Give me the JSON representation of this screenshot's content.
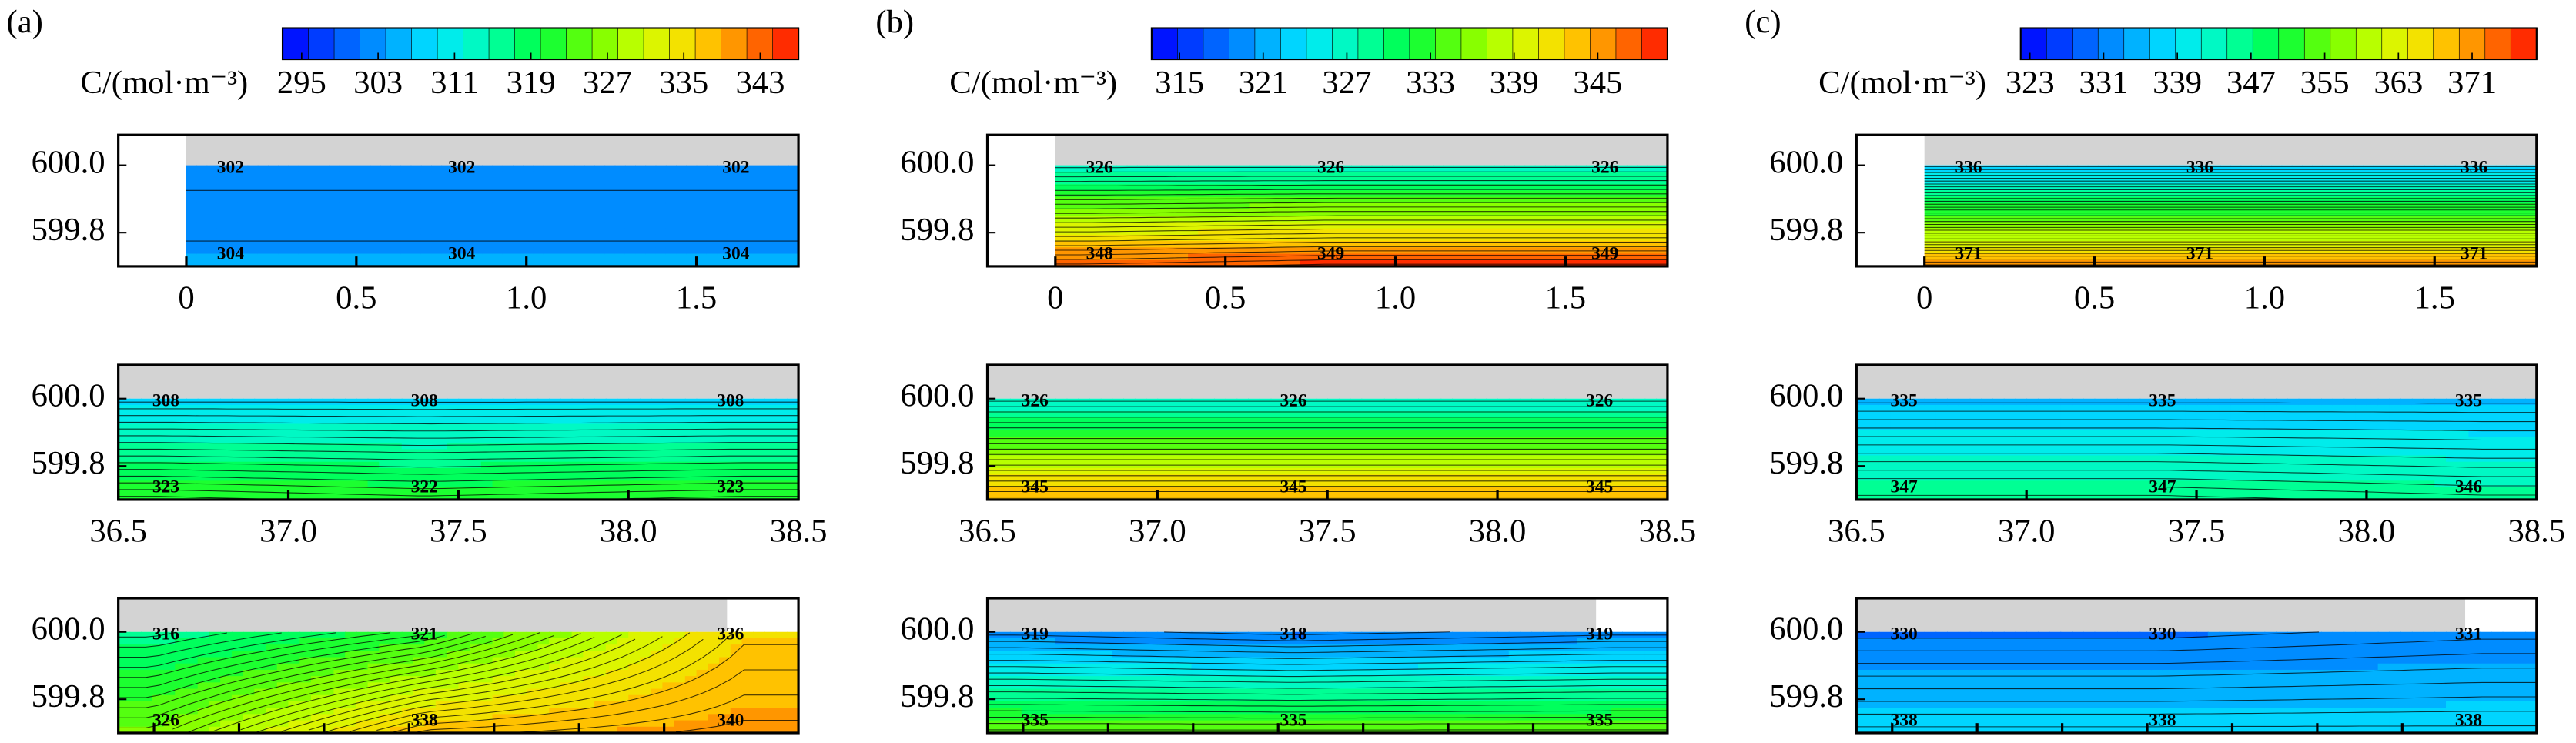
{
  "chart_data": [
    {
      "type": "contour",
      "panel_label": "(a)",
      "colormap": [
        "#0000ff",
        "#0050ff",
        "#00a0ff",
        "#00e6ff",
        "#00ffb0",
        "#00ff40",
        "#70ff00",
        "#d0ff00",
        "#ffd800",
        "#ff8000",
        "#ff1000"
      ],
      "surface_color": "#d3d3d3",
      "colorbar": {
        "label": "C/(mol·m⁻³)",
        "clim": [
          293,
          347
        ],
        "ticks": [
          295,
          303,
          311,
          319,
          327,
          335,
          343
        ]
      },
      "plots": [
        {
          "xlim": [
            -0.2,
            1.8
          ],
          "xticks": [
            0,
            0.5,
            {
              "value": 1,
              "label": "1.0"
            },
            1.5
          ],
          "ylim": [
            599.7,
            600.09
          ],
          "yticks": [
            599.8,
            {
              "value": 600,
              "label": "600.0"
            }
          ],
          "top_labels": [
            302,
            302,
            302
          ],
          "bottom_labels": [
            304,
            304,
            304
          ]
        },
        {
          "xlim": [
            36.5,
            38.5
          ],
          "xticks": [
            36.5,
            {
              "value": 37,
              "label": "37.0"
            },
            37.5,
            {
              "value": 38,
              "label": "38.0"
            },
            38.5
          ],
          "ylim": [
            599.7,
            600.1
          ],
          "yticks": [
            599.8,
            {
              "value": 600,
              "label": "600.0"
            }
          ],
          "top_labels": [
            308,
            308,
            308
          ],
          "bottom_labels": [
            323,
            322,
            323
          ]
        },
        {
          "ylim": [
            599.7,
            600.1
          ],
          "yticks": [
            599.8,
            {
              "value": 600,
              "label": "600.0"
            }
          ],
          "top_labels": [
            316,
            321,
            336
          ],
          "bottom_labels": [
            326,
            338,
            340
          ]
        }
      ]
    },
    {
      "type": "contour",
      "panel_label": "(b)",
      "colormap": [
        "#0000ff",
        "#0050ff",
        "#00a0ff",
        "#00e6ff",
        "#00ffb0",
        "#00ff40",
        "#70ff00",
        "#d0ff00",
        "#ffd800",
        "#ff8000",
        "#ff1000"
      ],
      "surface_color": "#d3d3d3",
      "colorbar": {
        "label": "C/(mol·m⁻³)",
        "clim": [
          313,
          350
        ],
        "ticks": [
          315,
          321,
          327,
          333,
          339,
          345
        ]
      },
      "plots": [
        {
          "xlim": [
            -0.2,
            1.8
          ],
          "xticks": [
            0,
            0.5,
            {
              "value": 1,
              "label": "1.0"
            },
            1.5
          ],
          "ylim": [
            599.7,
            600.09
          ],
          "yticks": [
            599.8,
            {
              "value": 600,
              "label": "600.0"
            }
          ],
          "top_labels": [
            326,
            326,
            326
          ],
          "bottom_labels": [
            348,
            349,
            349
          ]
        },
        {
          "xlim": [
            36.5,
            38.5
          ],
          "xticks": [
            36.5,
            {
              "value": 37,
              "label": "37.0"
            },
            37.5,
            {
              "value": 38,
              "label": "38.0"
            },
            38.5
          ],
          "ylim": [
            599.7,
            600.1
          ],
          "yticks": [
            599.8,
            {
              "value": 600,
              "label": "600.0"
            }
          ],
          "top_labels": [
            326,
            326,
            326
          ],
          "bottom_labels": [
            345,
            345,
            345
          ]
        },
        {
          "ylim": [
            599.7,
            600.1
          ],
          "yticks": [
            599.8,
            {
              "value": 600,
              "label": "600.0"
            }
          ],
          "top_labels": [
            319,
            318,
            319
          ],
          "bottom_labels": [
            335,
            335,
            335
          ]
        }
      ]
    },
    {
      "type": "contour",
      "panel_label": "(c)",
      "colormap": [
        "#0000ff",
        "#0050ff",
        "#00a0ff",
        "#00e6ff",
        "#00ffb0",
        "#00ff40",
        "#70ff00",
        "#d0ff00",
        "#ffd800",
        "#ff8000",
        "#ff1000"
      ],
      "surface_color": "#d3d3d3",
      "colorbar": {
        "label": "C/(mol·m⁻³)",
        "clim": [
          322,
          378
        ],
        "ticks": [
          323,
          331,
          339,
          347,
          355,
          363,
          371
        ]
      },
      "plots": [
        {
          "xlim": [
            -0.2,
            1.8
          ],
          "xticks": [
            0,
            0.5,
            {
              "value": 1,
              "label": "1.0"
            },
            1.5
          ],
          "ylim": [
            599.7,
            600.09
          ],
          "yticks": [
            599.8,
            {
              "value": 600,
              "label": "600.0"
            }
          ],
          "top_labels": [
            336,
            336,
            336
          ],
          "bottom_labels": [
            371,
            371,
            371
          ]
        },
        {
          "xlim": [
            36.5,
            38.5
          ],
          "xticks": [
            36.5,
            {
              "value": 37,
              "label": "37.0"
            },
            37.5,
            {
              "value": 38,
              "label": "38.0"
            },
            38.5
          ],
          "ylim": [
            599.7,
            600.1
          ],
          "yticks": [
            599.8,
            {
              "value": 600,
              "label": "600.0"
            }
          ],
          "top_labels": [
            335,
            335,
            335
          ],
          "bottom_labels": [
            347,
            347,
            346
          ]
        },
        {
          "ylim": [
            599.7,
            600.1
          ],
          "yticks": [
            599.8,
            {
              "value": 600,
              "label": "600.0"
            }
          ],
          "top_labels": [
            330,
            330,
            331
          ],
          "bottom_labels": [
            338,
            338,
            338
          ]
        }
      ]
    }
  ]
}
